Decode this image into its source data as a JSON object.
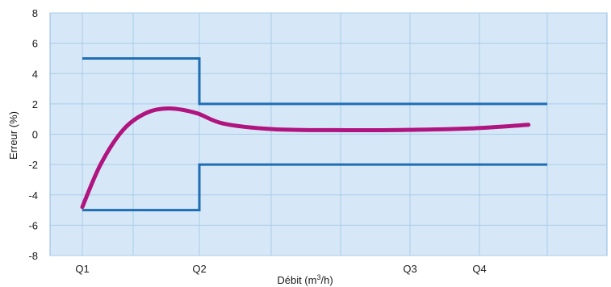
{
  "chart_data": {
    "type": "line",
    "title": "",
    "ylabel": "Erreur (%)",
    "xlabel": {
      "prefix": "Débit (m",
      "superscript": "3",
      "suffix": "/h)"
    },
    "ylim": [
      -8,
      8
    ],
    "y_ticks": [
      "8",
      "6",
      "4",
      "2",
      "0",
      "-2",
      "-4",
      "-6",
      "-8"
    ],
    "y_tick_values": [
      8,
      6,
      4,
      2,
      0,
      -2,
      -4,
      -6,
      -8
    ],
    "x_ticks": [
      "Q1",
      "Q2",
      "Q3",
      "Q4"
    ],
    "grid": true,
    "legend": "none",
    "series": [
      {
        "role": "upper-limit",
        "color": "#1f6db5",
        "points": [
          [
            "Q1",
            5
          ],
          [
            "Q2",
            5
          ],
          [
            "Q2",
            2
          ],
          [
            "end",
            2
          ]
        ]
      },
      {
        "role": "lower-limit",
        "color": "#1f6db5",
        "points": [
          [
            "Q1",
            -5
          ],
          [
            "Q2",
            -5
          ],
          [
            "Q2",
            -2
          ],
          [
            "end",
            -2
          ]
        ]
      },
      {
        "role": "error-curve",
        "color": "#b0147f",
        "x_fraction_Q1_to_end": [
          0,
          0.04,
          0.09,
          0.14,
          0.19,
          0.25,
          0.31,
          0.42,
          0.55,
          0.7,
          0.85,
          0.98
        ],
        "y": [
          -4.8,
          -2.0,
          0.3,
          1.4,
          1.7,
          1.4,
          0.7,
          0.33,
          0.27,
          0.28,
          0.38,
          0.62
        ]
      }
    ]
  },
  "colors": {
    "plot_background": "#d6e8f7",
    "grid_lines": "#a9cbe8",
    "plot_border": "#8fb9df",
    "limit_lines": "#1f6db5",
    "error_curve": "#b0147f"
  }
}
